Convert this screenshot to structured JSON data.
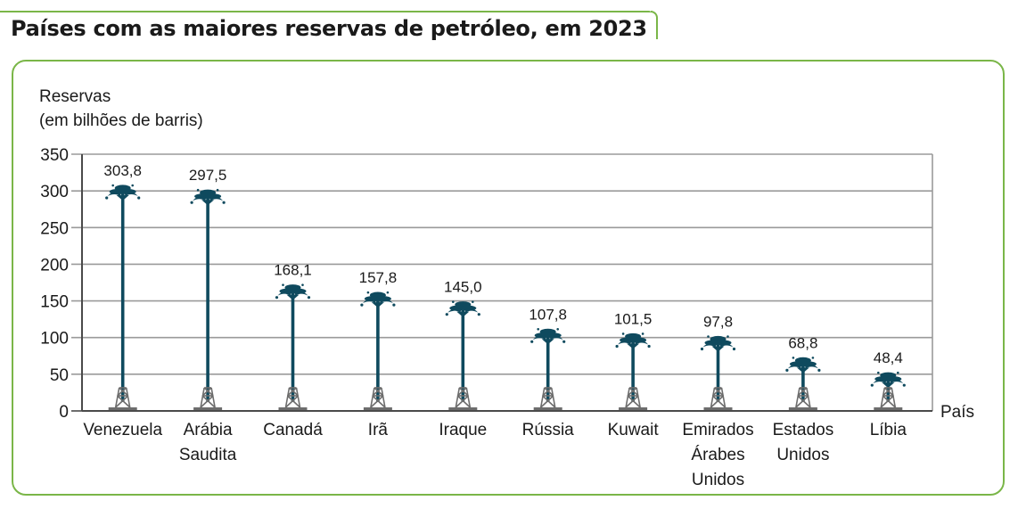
{
  "page": {
    "title": "Países com as maiores reservas de petróleo, em 2023"
  },
  "chart_data": {
    "type": "bar",
    "title": "Países com as maiores reservas de petróleo, em 2023",
    "ylabel_line1": "Reservas",
    "ylabel_line2": "(em bilhões de barris)",
    "xlabel": "País",
    "ylim": [
      0,
      350
    ],
    "yticks": [
      0,
      50,
      100,
      150,
      200,
      250,
      300,
      350
    ],
    "grid": true,
    "categories": [
      [
        "Venezuela"
      ],
      [
        "Arábia",
        "Saudita"
      ],
      [
        "Canadá"
      ],
      [
        "Irã"
      ],
      [
        "Iraque"
      ],
      [
        "Rússia"
      ],
      [
        "Kuwait"
      ],
      [
        "Emirados",
        "Árabes",
        "Unidos"
      ],
      [
        "Estados",
        "Unidos"
      ],
      [
        "Líbia"
      ]
    ],
    "values": [
      303.8,
      297.5,
      168.1,
      157.8,
      145.0,
      107.8,
      101.5,
      97.8,
      68.8,
      48.4
    ],
    "value_labels": [
      "303,8",
      "297,5",
      "168,1",
      "157,8",
      "145,0",
      "107,8",
      "101,5",
      "97,8",
      "68,8",
      "48,4"
    ]
  },
  "colors": {
    "accent_green": "#7ab648",
    "grid": "#9a9a9a",
    "oil": "#0f4a5e",
    "derrick": "#6d6d6d",
    "text": "#1a1a1a"
  }
}
